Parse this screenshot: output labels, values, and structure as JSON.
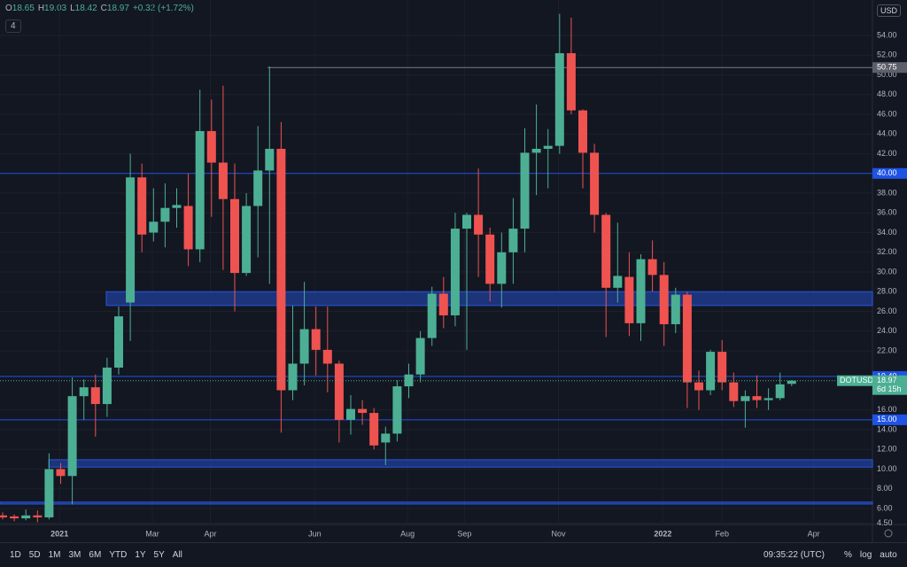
{
  "header": {
    "items": [
      {
        "label": "O",
        "value": "18.65"
      },
      {
        "label": "H",
        "value": "19.03"
      },
      {
        "label": "L",
        "value": "18.42"
      },
      {
        "label": "C",
        "value": "18.97"
      }
    ],
    "change": "+0.32 (+1.72%)",
    "indicators": "4",
    "currency": "USD"
  },
  "chart_data": {
    "type": "candlestick",
    "up_color": "#4caf94",
    "down_color": "#ef5350",
    "series": {
      "open": [
        5.3,
        5.2,
        5.0,
        5.3,
        5.1,
        10.0,
        9.3,
        17.4,
        18.3,
        16.6,
        20.3,
        26.9,
        39.6,
        34.0,
        35.1,
        36.5,
        36.7,
        32.3,
        44.3,
        41.1,
        37.4,
        29.9,
        36.7,
        40.3,
        42.5,
        18.0,
        20.7,
        24.2,
        22.1,
        20.7,
        15.0,
        16.1,
        15.7,
        12.7,
        13.6,
        18.4,
        19.6,
        23.3,
        27.8,
        25.6,
        34.4,
        35.8,
        33.8,
        28.8,
        32.0,
        34.4,
        42.1,
        42.5,
        42.8,
        52.2,
        46.4,
        42.1,
        35.8,
        28.4,
        29.5,
        24.8,
        31.3,
        29.7,
        24.7,
        27.7,
        18.8,
        18.0,
        21.9,
        18.8,
        16.9,
        17.4,
        17.0,
        17.2,
        18.65
      ],
      "high": [
        5.6,
        5.4,
        5.9,
        5.8,
        11.6,
        10.6,
        19.3,
        19.1,
        19.6,
        21.3,
        26.5,
        42.0,
        41.0,
        38.5,
        39.0,
        38.5,
        40.0,
        48.5,
        47.5,
        48.9,
        41.0,
        38.0,
        44.8,
        50.85,
        45.2,
        26.6,
        29.0,
        26.5,
        26.5,
        21.0,
        17.5,
        17.0,
        16.2,
        14.3,
        19.0,
        20.7,
        24.0,
        28.5,
        29.5,
        36.0,
        36.0,
        40.5,
        34.5,
        34.0,
        37.5,
        44.6,
        47.0,
        44.5,
        56.2,
        55.8,
        46.5,
        43.0,
        36.0,
        35.0,
        32.0,
        31.8,
        33.2,
        31.0,
        28.4,
        28.0,
        20.0,
        22.1,
        23.1,
        19.8,
        18.0,
        19.5,
        18.2,
        19.8,
        19.03
      ],
      "low": [
        4.9,
        4.7,
        4.8,
        4.6,
        4.9,
        8.5,
        6.4,
        15.0,
        13.3,
        15.3,
        19.6,
        23.0,
        32.0,
        33.1,
        32.5,
        34.5,
        30.6,
        31.0,
        35.6,
        30.2,
        26.0,
        29.6,
        31.5,
        28.8,
        13.7,
        17.0,
        18.5,
        19.5,
        17.8,
        12.7,
        13.5,
        14.5,
        12.0,
        10.4,
        12.8,
        17.2,
        18.8,
        22.5,
        24.3,
        24.5,
        22.1,
        29.5,
        27.0,
        26.4,
        28.8,
        32.0,
        37.8,
        38.5,
        42.0,
        46.0,
        38.5,
        34.0,
        23.4,
        26.9,
        23.5,
        23.0,
        28.0,
        22.5,
        23.8,
        16.2,
        16.0,
        17.5,
        18.0,
        16.3,
        14.2,
        16.2,
        16.0,
        17.0,
        18.42
      ],
      "close": [
        5.1,
        5.0,
        5.3,
        5.1,
        10.0,
        9.3,
        17.4,
        18.3,
        16.6,
        20.3,
        25.5,
        39.6,
        33.8,
        35.1,
        36.5,
        36.8,
        32.3,
        44.3,
        41.1,
        37.4,
        29.9,
        36.7,
        40.3,
        42.5,
        18.0,
        20.7,
        24.2,
        22.1,
        20.7,
        15.0,
        16.1,
        15.7,
        12.4,
        13.6,
        18.4,
        19.6,
        23.3,
        27.8,
        25.6,
        34.4,
        35.8,
        33.8,
        28.8,
        32.0,
        34.4,
        42.1,
        42.5,
        42.8,
        52.2,
        46.4,
        42.1,
        35.8,
        28.4,
        29.6,
        24.8,
        31.3,
        29.7,
        24.7,
        27.7,
        18.8,
        18.0,
        21.9,
        18.8,
        16.9,
        17.4,
        17.0,
        17.2,
        18.6,
        18.97
      ]
    },
    "ylim": [
      4.38,
      57.6
    ],
    "yticks": [
      {
        "value": 54,
        "label": "54.00"
      },
      {
        "value": 52,
        "label": "52.00"
      },
      {
        "value": 50,
        "label": "50.00"
      },
      {
        "value": 48,
        "label": "48.00"
      },
      {
        "value": 46,
        "label": "46.00"
      },
      {
        "value": 44,
        "label": "44.00"
      },
      {
        "value": 42,
        "label": "42.00"
      },
      {
        "value": 38,
        "label": "38.00"
      },
      {
        "value": 36,
        "label": "36.00"
      },
      {
        "value": 34,
        "label": "34.00"
      },
      {
        "value": 32,
        "label": "32.00"
      },
      {
        "value": 30,
        "label": "30.00"
      },
      {
        "value": 28,
        "label": "28.00"
      },
      {
        "value": 26,
        "label": "26.00"
      },
      {
        "value": 24,
        "label": "24.00"
      },
      {
        "value": 22,
        "label": "22.00"
      },
      {
        "value": 16,
        "label": "16.00"
      },
      {
        "value": 14,
        "label": "14.00"
      },
      {
        "value": 12,
        "label": "12.00"
      },
      {
        "value": 10,
        "label": "10.00"
      },
      {
        "value": 8,
        "label": "8.00"
      },
      {
        "value": 6,
        "label": "6.00"
      },
      {
        "value": 4.5,
        "label": "4.50"
      }
    ],
    "xticks": [
      {
        "value": 4.9,
        "label": "2021"
      },
      {
        "value": 12.9,
        "label": "Mar"
      },
      {
        "value": 17.9,
        "label": "Apr"
      },
      {
        "value": 26.9,
        "label": "Jun"
      },
      {
        "value": 34.9,
        "label": "Aug"
      },
      {
        "value": 39.8,
        "label": "Sep"
      },
      {
        "value": 47.9,
        "label": "Nov"
      },
      {
        "value": 56.9,
        "label": "2022"
      },
      {
        "value": 62.0,
        "label": "Feb"
      },
      {
        "value": 69.9,
        "label": "Apr"
      }
    ],
    "levels": [
      {
        "value": 50.75,
        "label": "50.75",
        "color": "#5d606b"
      },
      {
        "value": 40,
        "label": "40.00",
        "color": "#1e53e5"
      },
      {
        "value": 19.4,
        "label": "19.40",
        "color": "#1e53e5"
      },
      {
        "value": 15,
        "label": "15.00",
        "color": "#1e53e5"
      }
    ],
    "zones": [
      {
        "low": 26.6,
        "high": 28.0
      },
      {
        "low": 10.2,
        "high": 10.95
      },
      {
        "low": 6.45,
        "high": 6.65
      }
    ],
    "last_price": {
      "symbol": "DOTUSD",
      "value": 18.97,
      "label": "18.97",
      "countdown": "6d 15h"
    }
  },
  "toolbar": {
    "ranges": [
      "1D",
      "5D",
      "1M",
      "3M",
      "6M",
      "YTD",
      "1Y",
      "5Y",
      "All"
    ],
    "time": "09:35:22 (UTC)",
    "toggles": [
      "%",
      "log",
      "auto"
    ]
  }
}
